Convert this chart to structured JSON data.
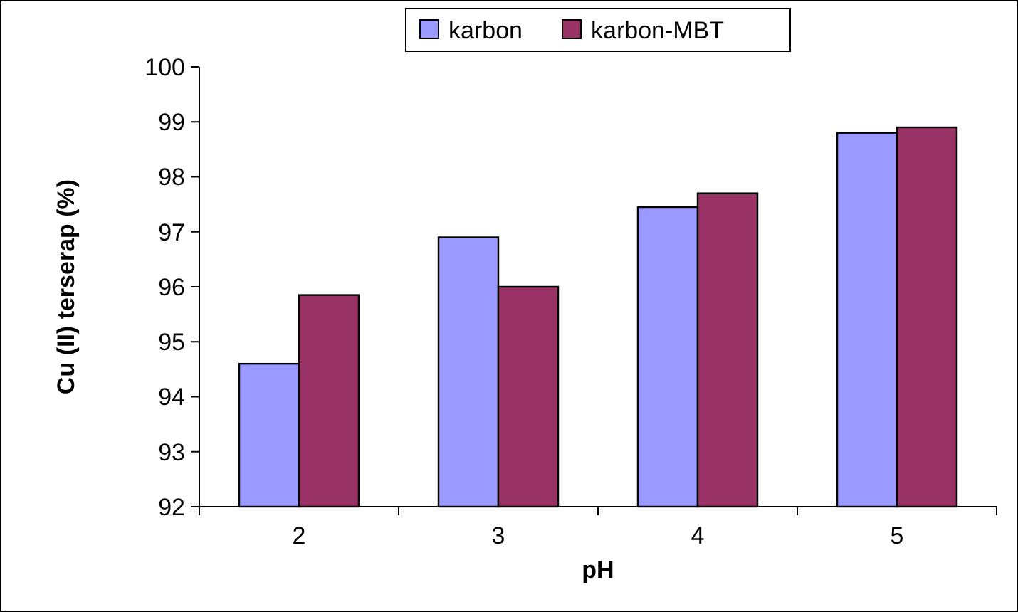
{
  "chart_data": {
    "type": "bar",
    "xlabel": "pH",
    "ylabel": "Cu (II) terserap (%)",
    "categories": [
      "2",
      "3",
      "4",
      "5"
    ],
    "series": [
      {
        "name": "karbon",
        "color": "#9999ff",
        "values": [
          94.6,
          96.9,
          97.45,
          98.8
        ]
      },
      {
        "name": "karbon-MBT",
        "color": "#993366",
        "values": [
          95.85,
          96.0,
          97.7,
          98.9
        ]
      }
    ],
    "ylim": [
      92,
      100
    ],
    "yticks": [
      92,
      93,
      94,
      95,
      96,
      97,
      98,
      99,
      100
    ],
    "grid": false,
    "legend": "top"
  }
}
